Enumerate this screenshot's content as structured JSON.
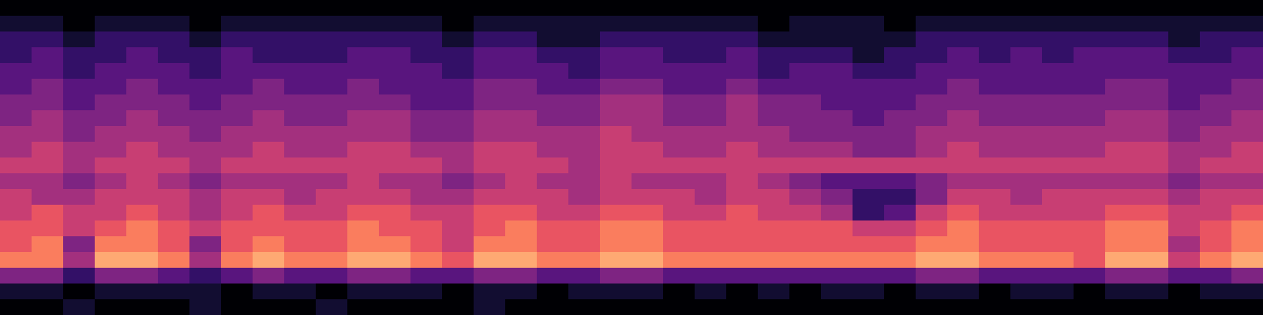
{
  "chart_data": {
    "type": "heatmap",
    "tick_labels": false,
    "color_range": [
      0,
      11
    ],
    "cells": [
      [
        0,
        0,
        0,
        0,
        0,
        0,
        0,
        0,
        0,
        0,
        0,
        0,
        0,
        0,
        0,
        0,
        0,
        0,
        0,
        0,
        0,
        0,
        0,
        0,
        0,
        0,
        0,
        0,
        0,
        0,
        0,
        0,
        0,
        0,
        0,
        0,
        0,
        0,
        0,
        0
      ],
      [
        1,
        1,
        0,
        1,
        1,
        1,
        0,
        1,
        1,
        1,
        1,
        1,
        1,
        1,
        0,
        1,
        1,
        1,
        1,
        1,
        1,
        1,
        1,
        1,
        0,
        1,
        1,
        1,
        0,
        1,
        1,
        1,
        1,
        1,
        1,
        1,
        1,
        1,
        1,
        1
      ],
      [
        2,
        2,
        1,
        2,
        2,
        2,
        1,
        2,
        2,
        2,
        2,
        2,
        2,
        2,
        1,
        2,
        2,
        1,
        1,
        2,
        2,
        2,
        2,
        2,
        1,
        1,
        1,
        1,
        1,
        2,
        2,
        2,
        2,
        2,
        2,
        2,
        2,
        1,
        2,
        2
      ],
      [
        2,
        3,
        2,
        2,
        3,
        2,
        2,
        3,
        2,
        2,
        2,
        3,
        3,
        2,
        2,
        3,
        3,
        2,
        2,
        3,
        3,
        2,
        2,
        3,
        2,
        2,
        2,
        1,
        2,
        2,
        3,
        2,
        3,
        2,
        3,
        3,
        3,
        2,
        2,
        3
      ],
      [
        3,
        3,
        2,
        3,
        3,
        3,
        2,
        3,
        3,
        3,
        3,
        3,
        3,
        3,
        2,
        3,
        3,
        3,
        2,
        3,
        3,
        3,
        3,
        3,
        2,
        3,
        3,
        2,
        2,
        3,
        3,
        3,
        3,
        3,
        3,
        3,
        3,
        3,
        3,
        3
      ],
      [
        3,
        4,
        3,
        3,
        4,
        3,
        3,
        3,
        4,
        3,
        3,
        4,
        3,
        3,
        3,
        4,
        4,
        3,
        3,
        4,
        4,
        3,
        3,
        4,
        3,
        3,
        3,
        3,
        3,
        3,
        4,
        3,
        3,
        3,
        3,
        4,
        4,
        3,
        3,
        4
      ],
      [
        4,
        4,
        3,
        4,
        4,
        4,
        3,
        4,
        4,
        4,
        4,
        4,
        4,
        3,
        3,
        4,
        4,
        4,
        4,
        5,
        5,
        4,
        4,
        5,
        4,
        4,
        3,
        3,
        3,
        4,
        4,
        4,
        4,
        4,
        4,
        4,
        4,
        3,
        4,
        4
      ],
      [
        4,
        5,
        4,
        4,
        5,
        4,
        4,
        4,
        5,
        4,
        4,
        5,
        5,
        4,
        4,
        5,
        5,
        4,
        4,
        5,
        5,
        4,
        4,
        5,
        4,
        4,
        4,
        3,
        4,
        4,
        5,
        4,
        4,
        4,
        4,
        5,
        5,
        4,
        4,
        5
      ],
      [
        5,
        5,
        4,
        5,
        5,
        5,
        4,
        5,
        5,
        5,
        5,
        5,
        5,
        4,
        4,
        5,
        5,
        5,
        5,
        6,
        5,
        5,
        5,
        5,
        5,
        4,
        4,
        4,
        4,
        5,
        5,
        5,
        5,
        5,
        5,
        5,
        5,
        4,
        5,
        5
      ],
      [
        5,
        6,
        5,
        5,
        6,
        5,
        5,
        5,
        6,
        5,
        5,
        6,
        6,
        5,
        5,
        6,
        6,
        5,
        5,
        6,
        6,
        5,
        5,
        6,
        5,
        5,
        5,
        4,
        4,
        5,
        6,
        5,
        5,
        5,
        5,
        6,
        6,
        5,
        5,
        6
      ],
      [
        6,
        6,
        5,
        6,
        6,
        6,
        5,
        6,
        6,
        6,
        6,
        6,
        6,
        6,
        5,
        6,
        6,
        6,
        5,
        6,
        6,
        6,
        6,
        6,
        6,
        6,
        6,
        6,
        6,
        6,
        6,
        6,
        6,
        6,
        6,
        6,
        6,
        5,
        6,
        6
      ],
      [
        5,
        5,
        4,
        5,
        6,
        5,
        4,
        5,
        5,
        5,
        5,
        6,
        5,
        5,
        4,
        5,
        6,
        5,
        5,
        6,
        5,
        5,
        5,
        6,
        5,
        4,
        3,
        3,
        3,
        4,
        5,
        5,
        5,
        5,
        5,
        5,
        5,
        4,
        5,
        5
      ],
      [
        6,
        5,
        5,
        6,
        6,
        6,
        5,
        6,
        6,
        5,
        6,
        6,
        6,
        5,
        5,
        6,
        6,
        6,
        5,
        6,
        6,
        6,
        5,
        6,
        6,
        5,
        4,
        2,
        2,
        4,
        6,
        6,
        5,
        6,
        6,
        6,
        6,
        5,
        6,
        6
      ],
      [
        6,
        7,
        6,
        6,
        7,
        6,
        5,
        6,
        7,
        6,
        6,
        7,
        7,
        6,
        6,
        7,
        7,
        6,
        6,
        7,
        7,
        6,
        6,
        7,
        6,
        6,
        5,
        2,
        3,
        6,
        7,
        6,
        6,
        6,
        6,
        7,
        7,
        6,
        6,
        7
      ],
      [
        7,
        7,
        6,
        7,
        8,
        7,
        6,
        7,
        7,
        7,
        7,
        8,
        7,
        7,
        6,
        7,
        8,
        7,
        7,
        8,
        8,
        7,
        7,
        7,
        7,
        7,
        7,
        6,
        6,
        7,
        8,
        7,
        7,
        7,
        7,
        8,
        8,
        6,
        7,
        8
      ],
      [
        7,
        8,
        4,
        8,
        8,
        7,
        4,
        7,
        8,
        7,
        7,
        8,
        8,
        7,
        6,
        8,
        8,
        7,
        7,
        8,
        8,
        7,
        7,
        7,
        7,
        7,
        7,
        7,
        7,
        8,
        8,
        7,
        7,
        7,
        7,
        8,
        8,
        5,
        7,
        8
      ],
      [
        8,
        8,
        5,
        9,
        9,
        8,
        5,
        8,
        9,
        8,
        8,
        9,
        9,
        8,
        7,
        9,
        9,
        8,
        8,
        9,
        9,
        8,
        8,
        8,
        8,
        8,
        8,
        8,
        8,
        9,
        9,
        8,
        8,
        8,
        7,
        9,
        9,
        6,
        8,
        9
      ],
      [
        4,
        4,
        2,
        4,
        4,
        3,
        2,
        3,
        4,
        3,
        3,
        4,
        4,
        3,
        3,
        4,
        4,
        3,
        3,
        4,
        4,
        3,
        3,
        3,
        3,
        3,
        3,
        3,
        3,
        4,
        4,
        3,
        3,
        3,
        3,
        4,
        4,
        3,
        3,
        4
      ],
      [
        1,
        1,
        0,
        1,
        1,
        1,
        1,
        0,
        1,
        1,
        0,
        1,
        1,
        1,
        0,
        1,
        1,
        0,
        1,
        1,
        1,
        0,
        1,
        0,
        1,
        0,
        1,
        1,
        0,
        1,
        1,
        0,
        1,
        1,
        0,
        1,
        1,
        0,
        1,
        1
      ],
      [
        0,
        0,
        1,
        0,
        0,
        0,
        1,
        0,
        0,
        0,
        1,
        0,
        0,
        0,
        0,
        1,
        0,
        0,
        0,
        0,
        0,
        0,
        0,
        0,
        0,
        0,
        0,
        0,
        0,
        0,
        0,
        0,
        0,
        0,
        0,
        0,
        0,
        0,
        0,
        0
      ]
    ]
  }
}
